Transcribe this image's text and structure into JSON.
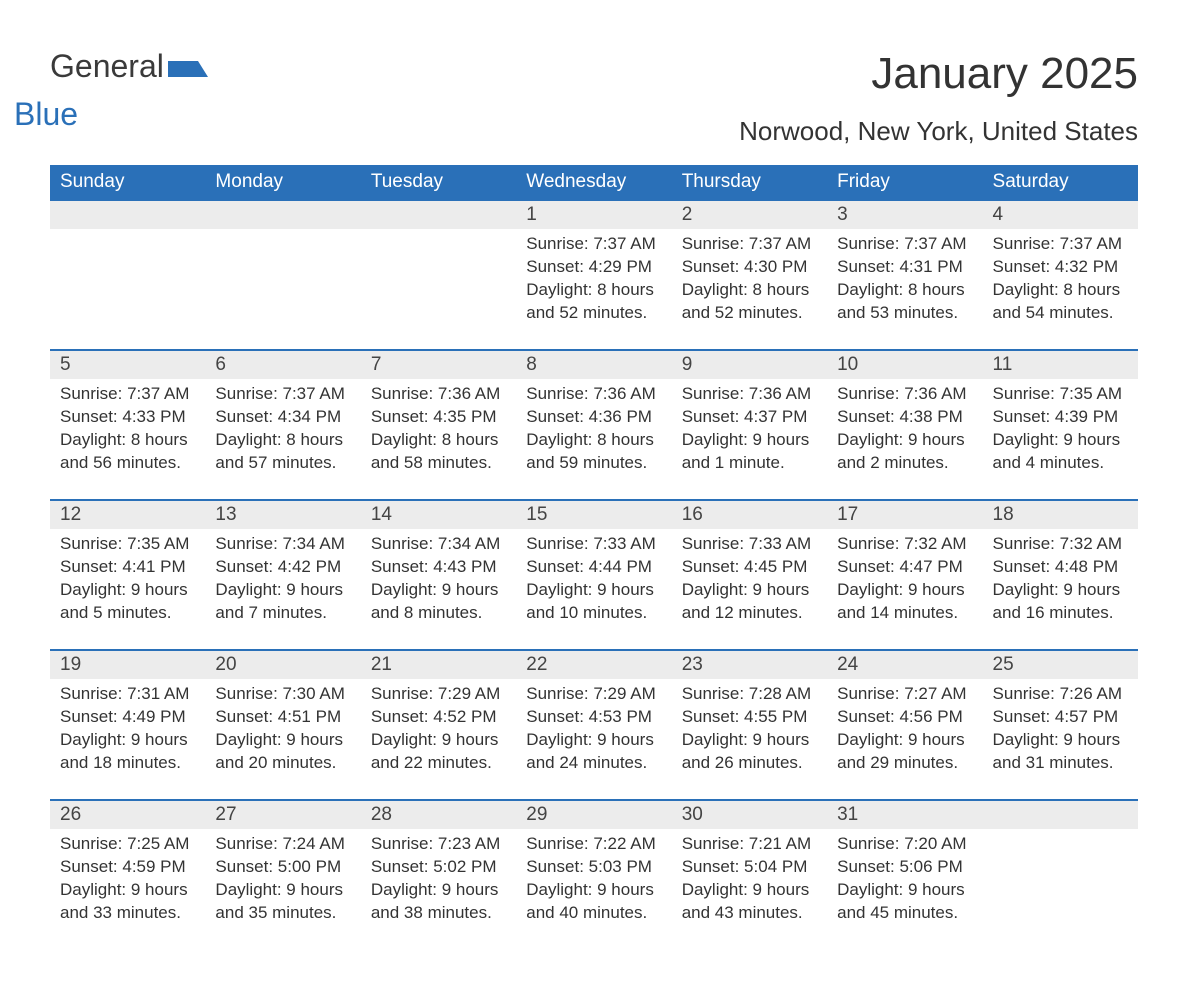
{
  "logo": {
    "text1": "General",
    "text2": "Blue"
  },
  "title": "January 2025",
  "location": "Norwood, New York, United States",
  "colors": {
    "header_bg": "#2a70b8",
    "header_text": "#ffffff",
    "daynum_bg": "#ececec",
    "rule": "#2a70b8",
    "body_text": "#333333",
    "page_bg": "#ffffff"
  },
  "fonts": {
    "title_size_pt": 33,
    "location_size_pt": 20,
    "header_size_pt": 15,
    "body_size_pt": 13
  },
  "weekdays": [
    "Sunday",
    "Monday",
    "Tuesday",
    "Wednesday",
    "Thursday",
    "Friday",
    "Saturday"
  ],
  "weeks": [
    [
      {
        "empty": true
      },
      {
        "empty": true
      },
      {
        "empty": true
      },
      {
        "day": "1",
        "sunrise": "Sunrise: 7:37 AM",
        "sunset": "Sunset: 4:29 PM",
        "daylight": "Daylight: 8 hours and 52 minutes."
      },
      {
        "day": "2",
        "sunrise": "Sunrise: 7:37 AM",
        "sunset": "Sunset: 4:30 PM",
        "daylight": "Daylight: 8 hours and 52 minutes."
      },
      {
        "day": "3",
        "sunrise": "Sunrise: 7:37 AM",
        "sunset": "Sunset: 4:31 PM",
        "daylight": "Daylight: 8 hours and 53 minutes."
      },
      {
        "day": "4",
        "sunrise": "Sunrise: 7:37 AM",
        "sunset": "Sunset: 4:32 PM",
        "daylight": "Daylight: 8 hours and 54 minutes."
      }
    ],
    [
      {
        "day": "5",
        "sunrise": "Sunrise: 7:37 AM",
        "sunset": "Sunset: 4:33 PM",
        "daylight": "Daylight: 8 hours and 56 minutes."
      },
      {
        "day": "6",
        "sunrise": "Sunrise: 7:37 AM",
        "sunset": "Sunset: 4:34 PM",
        "daylight": "Daylight: 8 hours and 57 minutes."
      },
      {
        "day": "7",
        "sunrise": "Sunrise: 7:36 AM",
        "sunset": "Sunset: 4:35 PM",
        "daylight": "Daylight: 8 hours and 58 minutes."
      },
      {
        "day": "8",
        "sunrise": "Sunrise: 7:36 AM",
        "sunset": "Sunset: 4:36 PM",
        "daylight": "Daylight: 8 hours and 59 minutes."
      },
      {
        "day": "9",
        "sunrise": "Sunrise: 7:36 AM",
        "sunset": "Sunset: 4:37 PM",
        "daylight": "Daylight: 9 hours and 1 minute."
      },
      {
        "day": "10",
        "sunrise": "Sunrise: 7:36 AM",
        "sunset": "Sunset: 4:38 PM",
        "daylight": "Daylight: 9 hours and 2 minutes."
      },
      {
        "day": "11",
        "sunrise": "Sunrise: 7:35 AM",
        "sunset": "Sunset: 4:39 PM",
        "daylight": "Daylight: 9 hours and 4 minutes."
      }
    ],
    [
      {
        "day": "12",
        "sunrise": "Sunrise: 7:35 AM",
        "sunset": "Sunset: 4:41 PM",
        "daylight": "Daylight: 9 hours and 5 minutes."
      },
      {
        "day": "13",
        "sunrise": "Sunrise: 7:34 AM",
        "sunset": "Sunset: 4:42 PM",
        "daylight": "Daylight: 9 hours and 7 minutes."
      },
      {
        "day": "14",
        "sunrise": "Sunrise: 7:34 AM",
        "sunset": "Sunset: 4:43 PM",
        "daylight": "Daylight: 9 hours and 8 minutes."
      },
      {
        "day": "15",
        "sunrise": "Sunrise: 7:33 AM",
        "sunset": "Sunset: 4:44 PM",
        "daylight": "Daylight: 9 hours and 10 minutes."
      },
      {
        "day": "16",
        "sunrise": "Sunrise: 7:33 AM",
        "sunset": "Sunset: 4:45 PM",
        "daylight": "Daylight: 9 hours and 12 minutes."
      },
      {
        "day": "17",
        "sunrise": "Sunrise: 7:32 AM",
        "sunset": "Sunset: 4:47 PM",
        "daylight": "Daylight: 9 hours and 14 minutes."
      },
      {
        "day": "18",
        "sunrise": "Sunrise: 7:32 AM",
        "sunset": "Sunset: 4:48 PM",
        "daylight": "Daylight: 9 hours and 16 minutes."
      }
    ],
    [
      {
        "day": "19",
        "sunrise": "Sunrise: 7:31 AM",
        "sunset": "Sunset: 4:49 PM",
        "daylight": "Daylight: 9 hours and 18 minutes."
      },
      {
        "day": "20",
        "sunrise": "Sunrise: 7:30 AM",
        "sunset": "Sunset: 4:51 PM",
        "daylight": "Daylight: 9 hours and 20 minutes."
      },
      {
        "day": "21",
        "sunrise": "Sunrise: 7:29 AM",
        "sunset": "Sunset: 4:52 PM",
        "daylight": "Daylight: 9 hours and 22 minutes."
      },
      {
        "day": "22",
        "sunrise": "Sunrise: 7:29 AM",
        "sunset": "Sunset: 4:53 PM",
        "daylight": "Daylight: 9 hours and 24 minutes."
      },
      {
        "day": "23",
        "sunrise": "Sunrise: 7:28 AM",
        "sunset": "Sunset: 4:55 PM",
        "daylight": "Daylight: 9 hours and 26 minutes."
      },
      {
        "day": "24",
        "sunrise": "Sunrise: 7:27 AM",
        "sunset": "Sunset: 4:56 PM",
        "daylight": "Daylight: 9 hours and 29 minutes."
      },
      {
        "day": "25",
        "sunrise": "Sunrise: 7:26 AM",
        "sunset": "Sunset: 4:57 PM",
        "daylight": "Daylight: 9 hours and 31 minutes."
      }
    ],
    [
      {
        "day": "26",
        "sunrise": "Sunrise: 7:25 AM",
        "sunset": "Sunset: 4:59 PM",
        "daylight": "Daylight: 9 hours and 33 minutes."
      },
      {
        "day": "27",
        "sunrise": "Sunrise: 7:24 AM",
        "sunset": "Sunset: 5:00 PM",
        "daylight": "Daylight: 9 hours and 35 minutes."
      },
      {
        "day": "28",
        "sunrise": "Sunrise: 7:23 AM",
        "sunset": "Sunset: 5:02 PM",
        "daylight": "Daylight: 9 hours and 38 minutes."
      },
      {
        "day": "29",
        "sunrise": "Sunrise: 7:22 AM",
        "sunset": "Sunset: 5:03 PM",
        "daylight": "Daylight: 9 hours and 40 minutes."
      },
      {
        "day": "30",
        "sunrise": "Sunrise: 7:21 AM",
        "sunset": "Sunset: 5:04 PM",
        "daylight": "Daylight: 9 hours and 43 minutes."
      },
      {
        "day": "31",
        "sunrise": "Sunrise: 7:20 AM",
        "sunset": "Sunset: 5:06 PM",
        "daylight": "Daylight: 9 hours and 45 minutes."
      },
      {
        "empty": true
      }
    ]
  ]
}
